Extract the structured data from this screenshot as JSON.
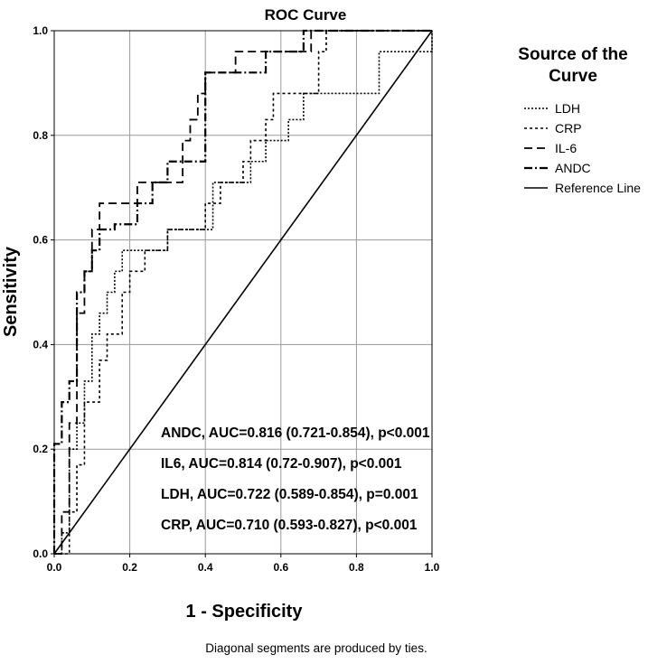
{
  "chart_data": {
    "type": "line",
    "title": "ROC Curve",
    "xlabel": "1 - Specificity",
    "ylabel": "Sensitivity",
    "xlim": [
      0,
      1
    ],
    "ylim": [
      0,
      1
    ],
    "xticks": [
      "0.0",
      "0.2",
      "0.4",
      "0.6",
      "0.8",
      "1.0"
    ],
    "yticks": [
      "0.0",
      "0.2",
      "0.4",
      "0.6",
      "0.8",
      "1.0"
    ],
    "grid": true,
    "legend": {
      "title": "Source of the Curve",
      "title_lines": [
        "Source of the",
        "Curve"
      ],
      "position": "right"
    },
    "footnote": "Diagonal segments are produced by ties.",
    "annotations": [
      "ANDC, AUC=0.816 (0.721-0.854), p<0.001",
      "IL6, AUC=0.814 (0.72-0.907), p<0.001",
      "LDH, AUC=0.722 (0.589-0.854), p=0.001",
      "CRP, AUC=0.710 (0.593-0.827), p<0.001"
    ],
    "series": [
      {
        "name": "LDH",
        "dash": "dotted",
        "points": [
          [
            0,
            0
          ],
          [
            0.02,
            0
          ],
          [
            0.02,
            0.04
          ],
          [
            0.04,
            0.04
          ],
          [
            0.04,
            0.2
          ],
          [
            0.06,
            0.2
          ],
          [
            0.06,
            0.25
          ],
          [
            0.08,
            0.25
          ],
          [
            0.08,
            0.33
          ],
          [
            0.1,
            0.33
          ],
          [
            0.1,
            0.42
          ],
          [
            0.12,
            0.42
          ],
          [
            0.12,
            0.46
          ],
          [
            0.14,
            0.46
          ],
          [
            0.14,
            0.5
          ],
          [
            0.16,
            0.5
          ],
          [
            0.16,
            0.54
          ],
          [
            0.18,
            0.54
          ],
          [
            0.18,
            0.58
          ],
          [
            0.3,
            0.58
          ],
          [
            0.3,
            0.62
          ],
          [
            0.42,
            0.62
          ],
          [
            0.42,
            0.71
          ],
          [
            0.52,
            0.71
          ],
          [
            0.52,
            0.75
          ],
          [
            0.56,
            0.75
          ],
          [
            0.56,
            0.79
          ],
          [
            0.62,
            0.79
          ],
          [
            0.62,
            0.83
          ],
          [
            0.66,
            0.83
          ],
          [
            0.66,
            0.88
          ],
          [
            0.86,
            0.88
          ],
          [
            0.86,
            0.96
          ],
          [
            1.0,
            0.96
          ],
          [
            1.0,
            1.0
          ]
        ]
      },
      {
        "name": "CRP",
        "dash": "short-dash",
        "points": [
          [
            0,
            0
          ],
          [
            0.04,
            0
          ],
          [
            0.04,
            0.08
          ],
          [
            0.06,
            0.08
          ],
          [
            0.06,
            0.17
          ],
          [
            0.08,
            0.17
          ],
          [
            0.08,
            0.29
          ],
          [
            0.12,
            0.29
          ],
          [
            0.12,
            0.37
          ],
          [
            0.14,
            0.37
          ],
          [
            0.14,
            0.42
          ],
          [
            0.18,
            0.42
          ],
          [
            0.18,
            0.5
          ],
          [
            0.2,
            0.5
          ],
          [
            0.2,
            0.54
          ],
          [
            0.24,
            0.54
          ],
          [
            0.24,
            0.58
          ],
          [
            0.3,
            0.58
          ],
          [
            0.3,
            0.62
          ],
          [
            0.4,
            0.62
          ],
          [
            0.4,
            0.67
          ],
          [
            0.44,
            0.67
          ],
          [
            0.44,
            0.71
          ],
          [
            0.5,
            0.71
          ],
          [
            0.5,
            0.75
          ],
          [
            0.52,
            0.75
          ],
          [
            0.52,
            0.79
          ],
          [
            0.56,
            0.79
          ],
          [
            0.56,
            0.83
          ],
          [
            0.58,
            0.83
          ],
          [
            0.58,
            0.88
          ],
          [
            0.7,
            0.88
          ],
          [
            0.7,
            0.96
          ],
          [
            0.72,
            0.96
          ],
          [
            0.72,
            1.0
          ],
          [
            1.0,
            1.0
          ]
        ]
      },
      {
        "name": "IL-6",
        "dash": "long-dash",
        "points": [
          [
            0,
            0
          ],
          [
            0.02,
            0
          ],
          [
            0.02,
            0.08
          ],
          [
            0.04,
            0.08
          ],
          [
            0.04,
            0.25
          ],
          [
            0.06,
            0.25
          ],
          [
            0.06,
            0.46
          ],
          [
            0.08,
            0.46
          ],
          [
            0.08,
            0.54
          ],
          [
            0.1,
            0.54
          ],
          [
            0.1,
            0.62
          ],
          [
            0.12,
            0.62
          ],
          [
            0.12,
            0.67
          ],
          [
            0.22,
            0.67
          ],
          [
            0.22,
            0.71
          ],
          [
            0.34,
            0.71
          ],
          [
            0.34,
            0.79
          ],
          [
            0.36,
            0.79
          ],
          [
            0.36,
            0.83
          ],
          [
            0.38,
            0.83
          ],
          [
            0.38,
            0.88
          ],
          [
            0.4,
            0.88
          ],
          [
            0.4,
            0.92
          ],
          [
            0.48,
            0.92
          ],
          [
            0.48,
            0.96
          ],
          [
            0.68,
            0.96
          ],
          [
            0.68,
            1.0
          ],
          [
            1.0,
            1.0
          ]
        ]
      },
      {
        "name": "ANDC",
        "dash": "dash-dot",
        "points": [
          [
            0,
            0
          ],
          [
            0,
            0.21
          ],
          [
            0.02,
            0.21
          ],
          [
            0.02,
            0.29
          ],
          [
            0.04,
            0.29
          ],
          [
            0.04,
            0.33
          ],
          [
            0.06,
            0.33
          ],
          [
            0.06,
            0.5
          ],
          [
            0.08,
            0.5
          ],
          [
            0.08,
            0.54
          ],
          [
            0.1,
            0.54
          ],
          [
            0.1,
            0.58
          ],
          [
            0.12,
            0.58
          ],
          [
            0.12,
            0.62
          ],
          [
            0.16,
            0.62
          ],
          [
            0.16,
            0.63
          ],
          [
            0.22,
            0.63
          ],
          [
            0.22,
            0.67
          ],
          [
            0.26,
            0.67
          ],
          [
            0.26,
            0.71
          ],
          [
            0.3,
            0.71
          ],
          [
            0.3,
            0.75
          ],
          [
            0.4,
            0.75
          ],
          [
            0.4,
            0.92
          ],
          [
            0.48,
            0.92
          ],
          [
            0.56,
            0.92
          ],
          [
            0.56,
            0.96
          ],
          [
            0.66,
            0.96
          ],
          [
            0.66,
            1.0
          ],
          [
            1.0,
            1.0
          ]
        ]
      },
      {
        "name": "Reference Line",
        "dash": "solid",
        "points": [
          [
            0,
            0
          ],
          [
            1,
            1
          ]
        ]
      }
    ]
  }
}
